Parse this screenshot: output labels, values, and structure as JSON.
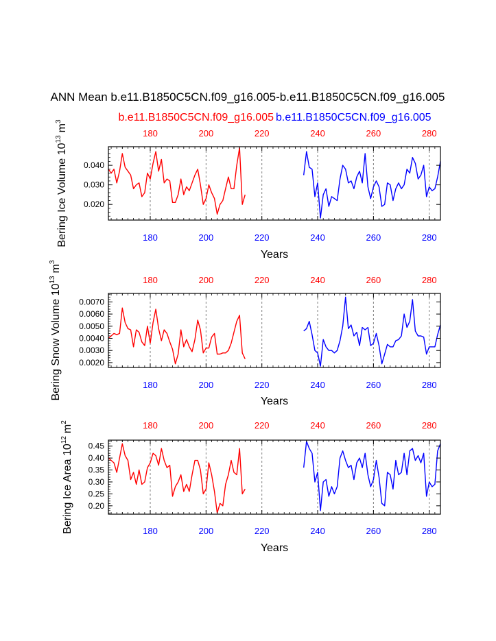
{
  "title": "ANN Mean b.e11.B1850C5CN.f09_g16.005-b.e11.B1850C5CN.f09_g16.005",
  "colors": {
    "case1": "#ff0000",
    "case2": "#0000ff",
    "axis": "#000000",
    "grid": "#808080"
  },
  "chart_data": [
    {
      "type": "line",
      "ylabel": "Bering Ice Volume 10",
      "ylabel_sup": "13",
      "ylabel_unit": "m",
      "ylabel_unit_sup": "3",
      "xlabel": "Years",
      "xlim": [
        165,
        284
      ],
      "ylim": [
        0.012,
        0.0495
      ],
      "yticks": [
        0.02,
        0.03,
        0.04
      ],
      "ytick_labels": [
        "0.020",
        "0.030",
        "0.040"
      ],
      "xticks": [
        180,
        200,
        220,
        240,
        260,
        280
      ],
      "bottom_tick_labels": [
        "180",
        "200",
        "220",
        "240",
        "260",
        "280"
      ],
      "top_tick_labels": [
        "180",
        "200",
        "220",
        "240",
        "260",
        "280"
      ],
      "bottom_visible_ticks": [
        180,
        200,
        240,
        260,
        280
      ],
      "top_ticks_on_top": [
        180,
        200,
        220,
        240,
        260,
        280
      ],
      "case_names": [
        "b.e11.B1850C5CN.f09_g16.005",
        "b.e11.B1850C5CN.f09_g16.005"
      ],
      "series": [
        {
          "name": "b.e11.B1850C5CN.f09_g16.005",
          "color": "#ff0000",
          "x": [
            165,
            166,
            167,
            168,
            169,
            170,
            171,
            172,
            173,
            174,
            175,
            176,
            177,
            178,
            179,
            180,
            181,
            182,
            183,
            184,
            185,
            186,
            187,
            188,
            189,
            190,
            191,
            192,
            193,
            194,
            195,
            196,
            197,
            198,
            199,
            200,
            201,
            202,
            203,
            204,
            205,
            206,
            207,
            208,
            209,
            210,
            211,
            212,
            213,
            214
          ],
          "values": [
            0.038,
            0.036,
            0.038,
            0.031,
            0.037,
            0.046,
            0.039,
            0.037,
            0.035,
            0.028,
            0.03,
            0.031,
            0.024,
            0.026,
            0.036,
            0.033,
            0.041,
            0.047,
            0.037,
            0.043,
            0.031,
            0.033,
            0.032,
            0.021,
            0.021,
            0.025,
            0.033,
            0.025,
            0.029,
            0.027,
            0.031,
            0.035,
            0.038,
            0.03,
            0.02,
            0.023,
            0.03,
            0.026,
            0.023,
            0.015,
            0.02,
            0.022,
            0.028,
            0.034,
            0.028,
            0.028,
            0.04,
            0.049,
            0.02,
            0.025
          ]
        },
        {
          "name": "b.e11.B1850C5CN.f09_g16.005",
          "color": "#0000ff",
          "x": [
            235,
            236,
            237,
            238,
            239,
            240,
            241,
            242,
            243,
            244,
            245,
            246,
            247,
            248,
            249,
            250,
            251,
            252,
            253,
            254,
            255,
            256,
            257,
            258,
            259,
            260,
            261,
            262,
            263,
            264,
            265,
            266,
            267,
            268,
            269,
            270,
            271,
            272,
            273,
            274,
            275,
            276,
            277,
            278,
            279,
            280,
            281,
            282,
            283,
            284
          ],
          "values": [
            0.035,
            0.047,
            0.039,
            0.038,
            0.024,
            0.031,
            0.013,
            0.025,
            0.028,
            0.019,
            0.024,
            0.023,
            0.022,
            0.033,
            0.04,
            0.038,
            0.031,
            0.032,
            0.028,
            0.034,
            0.037,
            0.031,
            0.046,
            0.029,
            0.023,
            0.029,
            0.032,
            0.029,
            0.019,
            0.02,
            0.031,
            0.03,
            0.022,
            0.028,
            0.031,
            0.028,
            0.03,
            0.038,
            0.036,
            0.044,
            0.041,
            0.033,
            0.035,
            0.04,
            0.024,
            0.029,
            0.027,
            0.028,
            0.034,
            0.042
          ]
        }
      ]
    },
    {
      "type": "line",
      "ylabel": "Bering Snow Volume 10",
      "ylabel_sup": "13",
      "ylabel_unit": "m",
      "ylabel_unit_sup": "3",
      "xlabel": "Years",
      "xlim": [
        165,
        284
      ],
      "ylim": [
        0.0016,
        0.0077
      ],
      "yticks": [
        0.002,
        0.003,
        0.004,
        0.005,
        0.006,
        0.007
      ],
      "ytick_labels": [
        "0.0020",
        "0.0030",
        "0.0040",
        "0.0050",
        "0.0060",
        "0.0070"
      ],
      "xticks": [
        180,
        200,
        220,
        240,
        260,
        280
      ],
      "bottom_tick_labels": [
        "180",
        "200",
        "220",
        "240",
        "260",
        "280"
      ],
      "top_tick_labels": [
        "180",
        "200",
        "220",
        "240",
        "260",
        "280"
      ],
      "series": [
        {
          "name": "b.e11.B1850C5CN.f09_g16.005",
          "color": "#ff0000",
          "x": [
            165,
            166,
            167,
            168,
            169,
            170,
            171,
            172,
            173,
            174,
            175,
            176,
            177,
            178,
            179,
            180,
            181,
            182,
            183,
            184,
            185,
            186,
            187,
            188,
            189,
            190,
            191,
            192,
            193,
            194,
            195,
            196,
            197,
            198,
            199,
            200,
            201,
            202,
            203,
            204,
            205,
            206,
            207,
            208,
            209,
            210,
            211,
            212,
            213,
            214
          ],
          "values": [
            0.004,
            0.0042,
            0.0044,
            0.0043,
            0.0044,
            0.0065,
            0.0053,
            0.0048,
            0.0047,
            0.0033,
            0.0047,
            0.0045,
            0.0037,
            0.0034,
            0.005,
            0.0036,
            0.0053,
            0.0064,
            0.0048,
            0.0038,
            0.0047,
            0.0044,
            0.0037,
            0.0031,
            0.0019,
            0.0027,
            0.0047,
            0.0033,
            0.0039,
            0.0033,
            0.0029,
            0.0039,
            0.0055,
            0.0047,
            0.0028,
            0.0032,
            0.0032,
            0.0041,
            0.0044,
            0.0027,
            0.0027,
            0.0028,
            0.0028,
            0.003,
            0.0036,
            0.0045,
            0.0054,
            0.0059,
            0.0028,
            0.0023
          ]
        },
        {
          "name": "b.e11.B1850C5CN.f09_g16.005",
          "color": "#0000ff",
          "x": [
            235,
            236,
            237,
            238,
            239,
            240,
            241,
            242,
            243,
            244,
            245,
            246,
            247,
            248,
            249,
            250,
            251,
            252,
            253,
            254,
            255,
            256,
            257,
            258,
            259,
            260,
            261,
            262,
            263,
            264,
            265,
            266,
            267,
            268,
            269,
            270,
            271,
            272,
            273,
            274,
            275,
            276,
            277,
            278,
            279,
            280,
            281,
            282,
            283,
            284
          ],
          "values": [
            0.0046,
            0.0048,
            0.0054,
            0.0043,
            0.003,
            0.0028,
            0.0017,
            0.0039,
            0.0033,
            0.003,
            0.003,
            0.0028,
            0.003,
            0.0038,
            0.005,
            0.0074,
            0.0048,
            0.0051,
            0.0042,
            0.0045,
            0.0034,
            0.0049,
            0.0047,
            0.0049,
            0.0034,
            0.0036,
            0.0044,
            0.0034,
            0.0019,
            0.0027,
            0.0035,
            0.0033,
            0.0033,
            0.0038,
            0.0039,
            0.0042,
            0.006,
            0.0049,
            0.0054,
            0.0072,
            0.0046,
            0.0042,
            0.0042,
            0.0041,
            0.0027,
            0.0033,
            0.0033,
            0.0033,
            0.0043,
            0.0051
          ]
        }
      ]
    },
    {
      "type": "line",
      "ylabel": "Bering Ice Area 10",
      "ylabel_sup": "12",
      "ylabel_unit": "m",
      "ylabel_unit_sup": "2",
      "xlabel": "Years",
      "xlim": [
        165,
        284
      ],
      "ylim": [
        0.165,
        0.475
      ],
      "yticks": [
        0.2,
        0.25,
        0.3,
        0.35,
        0.4,
        0.45
      ],
      "ytick_labels": [
        "0.20",
        "0.25",
        "0.30",
        "0.35",
        "0.40",
        "0.45"
      ],
      "xticks": [
        180,
        200,
        220,
        240,
        260,
        280
      ],
      "bottom_tick_labels": [
        "180",
        "200",
        "220",
        "240",
        "260",
        "280"
      ],
      "top_tick_labels": [
        "180",
        "200",
        "220",
        "240",
        "260",
        "280"
      ],
      "series": [
        {
          "name": "b.e11.B1850C5CN.f09_g16.005",
          "color": "#ff0000",
          "x": [
            165,
            166,
            167,
            168,
            169,
            170,
            171,
            172,
            173,
            174,
            175,
            176,
            177,
            178,
            179,
            180,
            181,
            182,
            183,
            184,
            185,
            186,
            187,
            188,
            189,
            190,
            191,
            192,
            193,
            194,
            195,
            196,
            197,
            198,
            199,
            200,
            201,
            202,
            203,
            204,
            205,
            206,
            207,
            208,
            209,
            210,
            211,
            212,
            213,
            214
          ],
          "values": [
            0.4,
            0.39,
            0.38,
            0.34,
            0.4,
            0.46,
            0.41,
            0.39,
            0.31,
            0.34,
            0.29,
            0.35,
            0.29,
            0.3,
            0.36,
            0.38,
            0.42,
            0.41,
            0.37,
            0.44,
            0.39,
            0.36,
            0.37,
            0.24,
            0.28,
            0.3,
            0.33,
            0.26,
            0.29,
            0.26,
            0.33,
            0.39,
            0.39,
            0.35,
            0.25,
            0.27,
            0.38,
            0.33,
            0.26,
            0.17,
            0.21,
            0.2,
            0.29,
            0.33,
            0.39,
            0.34,
            0.33,
            0.44,
            0.25,
            0.27
          ]
        },
        {
          "name": "b.e11.B1850C5CN.f09_g16.005",
          "color": "#0000ff",
          "x": [
            235,
            236,
            237,
            238,
            239,
            240,
            241,
            242,
            243,
            244,
            245,
            246,
            247,
            248,
            249,
            250,
            251,
            252,
            253,
            254,
            255,
            256,
            257,
            258,
            259,
            260,
            261,
            262,
            263,
            264,
            265,
            266,
            267,
            268,
            269,
            270,
            271,
            272,
            273,
            274,
            275,
            276,
            277,
            278,
            279,
            280,
            281,
            282,
            283,
            284
          ],
          "values": [
            0.36,
            0.47,
            0.44,
            0.42,
            0.3,
            0.34,
            0.18,
            0.3,
            0.31,
            0.24,
            0.28,
            0.25,
            0.28,
            0.4,
            0.43,
            0.39,
            0.36,
            0.37,
            0.31,
            0.38,
            0.4,
            0.36,
            0.42,
            0.33,
            0.28,
            0.31,
            0.39,
            0.32,
            0.21,
            0.2,
            0.34,
            0.33,
            0.27,
            0.39,
            0.33,
            0.34,
            0.42,
            0.33,
            0.43,
            0.44,
            0.39,
            0.41,
            0.38,
            0.42,
            0.24,
            0.3,
            0.28,
            0.29,
            0.43,
            0.46
          ]
        }
      ]
    }
  ]
}
